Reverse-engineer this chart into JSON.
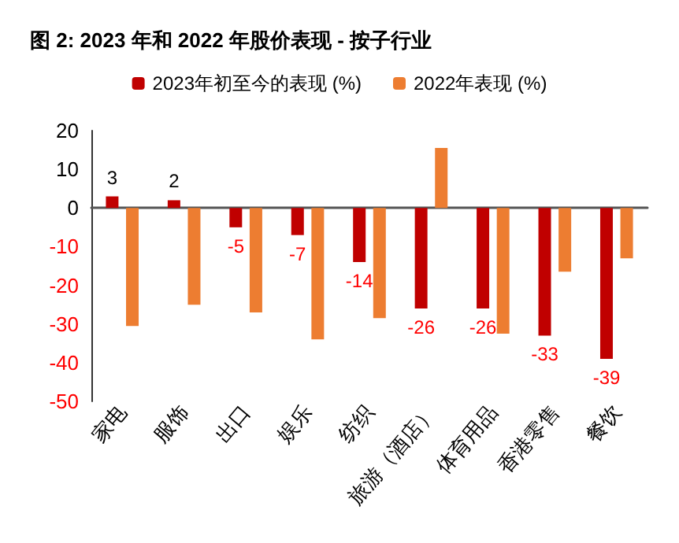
{
  "chart_data": {
    "type": "bar",
    "title": "图 2: 2023 年和 2022 年股价表现 - 按子行业",
    "categories": [
      "家电",
      "服饰",
      "出口",
      "娱乐",
      "纺织",
      "旅游（酒店）",
      "体育用品",
      "香港零售",
      "餐饮"
    ],
    "series": [
      {
        "name": "2023年初至今的表现 (%)",
        "color": "#c00000",
        "values": [
          3,
          2,
          -5,
          -7,
          -14,
          -26,
          -26,
          -33,
          -39
        ],
        "value_labels": [
          "3",
          "2",
          "-5",
          "-7",
          "-14",
          "-26",
          "-26",
          "-33",
          "-39"
        ]
      },
      {
        "name": "2022年表现 (%)",
        "color": "#ed7d31",
        "values": [
          -30.5,
          -25,
          -27,
          -34,
          -28.5,
          15.5,
          -32.5,
          -16.5,
          -13
        ]
      }
    ],
    "ylim": [
      -50,
      20
    ],
    "yticks": [
      -50,
      -40,
      -30,
      -20,
      -10,
      0,
      10,
      20
    ],
    "legend": "top"
  }
}
